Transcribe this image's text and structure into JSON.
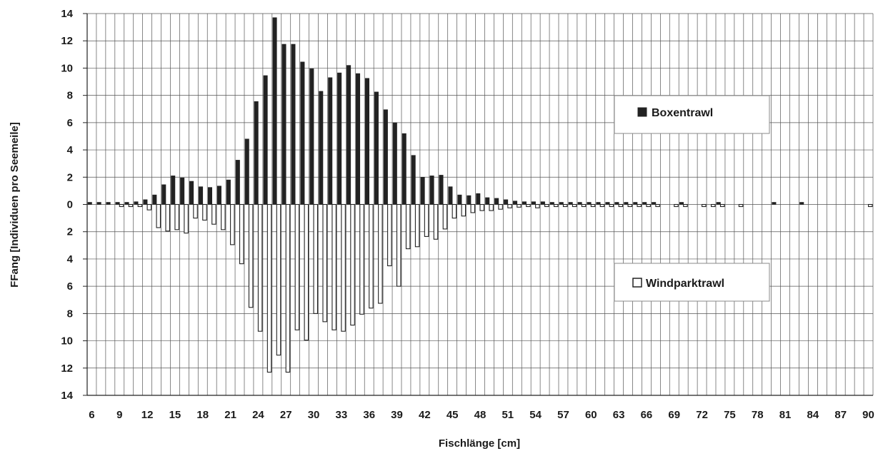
{
  "chart_data": {
    "type": "bar",
    "xlabel": "Fischlänge [cm]",
    "ylabel": "FFang  [Individuen pro Seemeile]",
    "ylim": [
      -14,
      14
    ],
    "y_tick_labels": [
      "14",
      "12",
      "10",
      "8",
      "6",
      "4",
      "2",
      "0",
      "2",
      "4",
      "6",
      "8",
      "10",
      "12",
      "14"
    ],
    "y_tick_values": [
      14,
      12,
      10,
      8,
      6,
      4,
      2,
      0,
      -2,
      -4,
      -6,
      -8,
      -10,
      -12,
      -14
    ],
    "x_tick_labels": [
      "6",
      "9",
      "12",
      "15",
      "18",
      "21",
      "24",
      "27",
      "30",
      "33",
      "36",
      "39",
      "42",
      "45",
      "48",
      "51",
      "54",
      "57",
      "60",
      "63",
      "66",
      "69",
      "72",
      "75",
      "78",
      "81",
      "84",
      "87",
      "90"
    ],
    "grid": true,
    "categories": [
      "6",
      "7",
      "8",
      "9",
      "10",
      "11",
      "12",
      "13",
      "14",
      "15",
      "16",
      "17",
      "18",
      "19",
      "20",
      "21",
      "22",
      "23",
      "24",
      "25",
      "26",
      "27",
      "28",
      "29",
      "30",
      "31",
      "32",
      "33",
      "34",
      "35",
      "36",
      "37",
      "38",
      "39",
      "40",
      "41",
      "42",
      "43",
      "44",
      "45",
      "46",
      "47",
      "48",
      "49",
      "50",
      "51",
      "52",
      "53",
      "54",
      "55",
      "56",
      "57",
      "58",
      "59",
      "60",
      "61",
      "62",
      "63",
      "64",
      "65",
      "66",
      "67",
      "68",
      "69",
      "70",
      "71",
      "72",
      "73",
      "74",
      "75",
      "76",
      "77",
      "78",
      "79",
      "80",
      "81",
      "82",
      "83",
      "84",
      "85",
      "86",
      "87",
      "88",
      "89",
      "90"
    ],
    "series": [
      {
        "name": "Boxentrawl",
        "color": "#222222",
        "legend_position": "upper-right",
        "values": [
          0.05,
          0.05,
          0.15,
          0.1,
          0.1,
          0.2,
          0.35,
          0.7,
          1.45,
          2.1,
          1.95,
          1.7,
          1.3,
          1.25,
          1.35,
          1.8,
          3.25,
          4.8,
          7.55,
          9.45,
          13.7,
          11.75,
          11.75,
          10.45,
          9.95,
          8.3,
          9.3,
          9.65,
          10.2,
          9.6,
          9.25,
          8.25,
          6.95,
          6.0,
          5.2,
          3.6,
          2.0,
          2.1,
          2.15,
          1.3,
          0.7,
          0.65,
          0.8,
          0.5,
          0.45,
          0.35,
          0.25,
          0.2,
          0.2,
          0.2,
          0.1,
          0.05,
          0.05,
          0.1,
          0.15,
          0.1,
          0.1,
          0.1,
          0.1,
          0.05,
          0.05,
          0.05,
          0,
          0,
          0.05,
          0,
          0,
          0,
          0.05,
          0,
          0,
          0,
          0,
          0,
          0.1,
          0,
          0,
          0.1,
          0,
          0,
          0,
          0,
          0,
          0,
          0
        ]
      },
      {
        "name": "Windparktrawl",
        "color": "#ffffff",
        "legend_position": "lower-right",
        "values": [
          0,
          0,
          0,
          0.05,
          0.1,
          0.15,
          0.4,
          1.7,
          1.95,
          1.85,
          2.1,
          1.0,
          1.15,
          1.45,
          1.85,
          2.95,
          4.35,
          7.55,
          9.3,
          12.3,
          11.05,
          12.3,
          9.2,
          9.95,
          8.0,
          8.6,
          9.2,
          9.3,
          8.85,
          8.05,
          7.6,
          7.25,
          4.5,
          6.0,
          3.25,
          3.1,
          2.35,
          2.55,
          1.8,
          1.0,
          0.85,
          0.6,
          0.45,
          0.45,
          0.35,
          0.25,
          0.2,
          0.15,
          0.25,
          0.15,
          0.1,
          0.1,
          0.05,
          0.05,
          0.1,
          0.1,
          0.05,
          0.05,
          0.1,
          0.1,
          0.05,
          0.05,
          0,
          0.05,
          0.1,
          0,
          0.05,
          0.05,
          0.1,
          0,
          0.15,
          0,
          0,
          0,
          0,
          0,
          0,
          0,
          0,
          0,
          0,
          0,
          0,
          0,
          0.15
        ]
      }
    ]
  }
}
